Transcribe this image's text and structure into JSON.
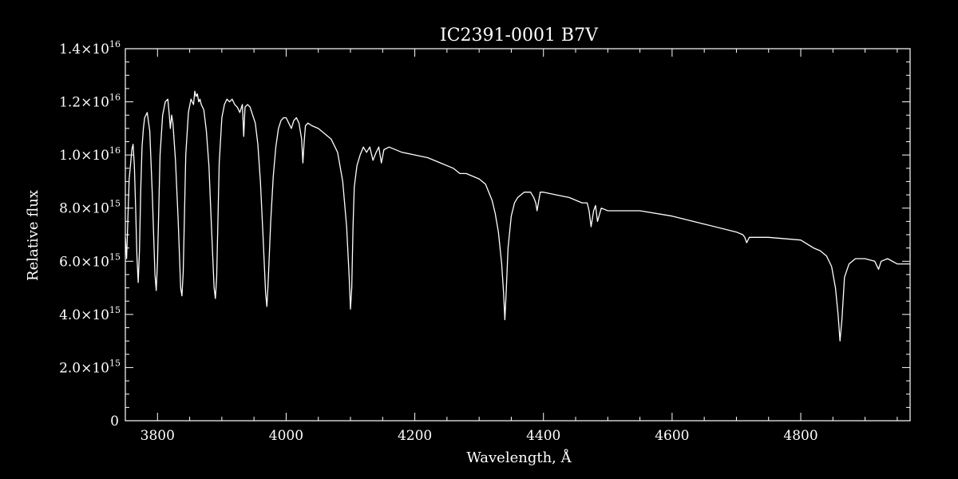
{
  "chart_data": {
    "type": "line",
    "title": "IC2391-0001   B7V",
    "xlabel": "Wavelength, Å",
    "ylabel": "Relative flux",
    "xlim": [
      3750,
      4970
    ],
    "ylim": [
      0,
      1.4e+16
    ],
    "x_ticks": [
      3800,
      4000,
      4200,
      4400,
      4600,
      4800
    ],
    "x_tick_labels": [
      "3800",
      "4000",
      "4200",
      "4400",
      "4600",
      "4800"
    ],
    "y_ticks": [
      {
        "value": 0,
        "mant": "0",
        "exp": ""
      },
      {
        "value": 2000000000000000.0,
        "mant": "2.0×10",
        "exp": "15"
      },
      {
        "value": 4000000000000000.0,
        "mant": "4.0×10",
        "exp": "15"
      },
      {
        "value": 6000000000000000.0,
        "mant": "6.0×10",
        "exp": "15"
      },
      {
        "value": 8000000000000000.0,
        "mant": "8.0×10",
        "exp": "15"
      },
      {
        "value": 1e+16,
        "mant": "1.0×10",
        "exp": "16"
      },
      {
        "value": 1.2e+16,
        "mant": "1.2×10",
        "exp": "16"
      },
      {
        "value": 1.4e+16,
        "mant": "1.4×10",
        "exp": "16"
      }
    ],
    "line_color": "#ffffff",
    "background": "#000000",
    "grid": false,
    "series": [
      {
        "x": [
          3750,
          3752,
          3754,
          3756,
          3758,
          3760,
          3762,
          3764,
          3766,
          3768,
          3770,
          3772,
          3774,
          3776,
          3778,
          3780,
          3784,
          3788,
          3792,
          3796,
          3798,
          3800,
          3804,
          3808,
          3812,
          3816,
          3818,
          3820,
          3822,
          3824,
          3828,
          3832,
          3836,
          3838,
          3840,
          3844,
          3848,
          3852,
          3856,
          3858,
          3860,
          3862,
          3864,
          3866,
          3868,
          3872,
          3876,
          3880,
          3884,
          3888,
          3890,
          3892,
          3896,
          3900,
          3904,
          3908,
          3912,
          3916,
          3920,
          3924,
          3928,
          3932,
          3934,
          3936,
          3940,
          3944,
          3948,
          3952,
          3956,
          3960,
          3964,
          3968,
          3970,
          3972,
          3976,
          3980,
          3984,
          3988,
          3992,
          3996,
          4000,
          4004,
          4008,
          4012,
          4016,
          4020,
          4024,
          4026,
          4028,
          4030,
          4034,
          4040,
          4050,
          4060,
          4070,
          4080,
          4088,
          4094,
          4098,
          4100,
          4102,
          4104,
          4106,
          4110,
          4115,
          4120,
          4125,
          4130,
          4135,
          4140,
          4144,
          4148,
          4152,
          4160,
          4180,
          4200,
          4220,
          4240,
          4260,
          4270,
          4280,
          4300,
          4310,
          4320,
          4325,
          4330,
          4335,
          4338,
          4340,
          4342,
          4345,
          4350,
          4355,
          4360,
          4370,
          4380,
          4385,
          4388,
          4390,
          4395,
          4400,
          4420,
          4440,
          4460,
          4468,
          4471,
          4474,
          4478,
          4481,
          4484,
          4490,
          4500,
          4550,
          4600,
          4650,
          4700,
          4710,
          4713,
          4716,
          4720,
          4750,
          4800,
          4820,
          4830,
          4840,
          4848,
          4854,
          4858,
          4861,
          4864,
          4868,
          4875,
          4885,
          4900,
          4915,
          4921,
          4925,
          4935,
          4950,
          4970
        ],
        "y": [
          6900000000000000.0,
          6100000000000000.0,
          7600000000000000.0,
          9100000000000000.0,
          9600000000000000.0,
          1.02e+16,
          1.04e+16,
          9600000000000000.0,
          8000000000000000.0,
          6200000000000000.0,
          5200000000000000.0,
          6400000000000000.0,
          8700000000000000.0,
          1.03e+16,
          1.1e+16,
          1.14e+16,
          1.16e+16,
          1.09e+16,
          8500000000000000.0,
          5500000000000000.0,
          4900000000000000.0,
          6000000000000000.0,
          1e+16,
          1.15e+16,
          1.2e+16,
          1.21e+16,
          1.16e+16,
          1.1e+16,
          1.15e+16,
          1.12e+16,
          9800000000000000.0,
          7600000000000000.0,
          5000000000000000.0,
          4700000000000000.0,
          5600000000000000.0,
          1e+16,
          1.16e+16,
          1.21e+16,
          1.19e+16,
          1.24e+16,
          1.22e+16,
          1.23e+16,
          1.2e+16,
          1.21e+16,
          1.19e+16,
          1.17e+16,
          1.09e+16,
          9600000000000000.0,
          7200000000000000.0,
          5000000000000000.0,
          4600000000000000.0,
          5400000000000000.0,
          9700000000000000.0,
          1.14e+16,
          1.19e+16,
          1.21e+16,
          1.2e+16,
          1.21e+16,
          1.19e+16,
          1.18e+16,
          1.16e+16,
          1.19e+16,
          1.07e+16,
          1.18e+16,
          1.19e+16,
          1.18e+16,
          1.15e+16,
          1.12e+16,
          1.04e+16,
          9000000000000000.0,
          7000000000000000.0,
          4800000000000000.0,
          4300000000000000.0,
          5200000000000000.0,
          7500000000000000.0,
          9200000000000000.0,
          1.03e+16,
          1.1e+16,
          1.13e+16,
          1.14e+16,
          1.14e+16,
          1.12e+16,
          1.1e+16,
          1.13e+16,
          1.14e+16,
          1.12e+16,
          1.06e+16,
          9700000000000000.0,
          1.05e+16,
          1.11e+16,
          1.12e+16,
          1.11e+16,
          1.1e+16,
          1.08e+16,
          1.06e+16,
          1.01e+16,
          9000000000000000.0,
          7300000000000000.0,
          5400000000000000.0,
          4200000000000000.0,
          5000000000000000.0,
          7300000000000000.0,
          8800000000000000.0,
          9600000000000000.0,
          1e+16,
          1.03e+16,
          1.01e+16,
          1.03e+16,
          9800000000000000.0,
          1.01e+16,
          1.03e+16,
          9700000000000000.0,
          1.02e+16,
          1.03e+16,
          1.01e+16,
          1e+16,
          9900000000000000.0,
          9700000000000000.0,
          9500000000000000.0,
          9300000000000000.0,
          9300000000000000.0,
          9100000000000000.0,
          8900000000000000.0,
          8300000000000000.0,
          7800000000000000.0,
          7100000000000000.0,
          5900000000000000.0,
          4800000000000000.0,
          3800000000000000.0,
          4800000000000000.0,
          6500000000000000.0,
          7700000000000000.0,
          8200000000000000.0,
          8400000000000000.0,
          8600000000000000.0,
          8600000000000000.0,
          8400000000000000.0,
          8200000000000000.0,
          7900000000000000.0,
          8600000000000000.0,
          8600000000000000.0,
          8500000000000000.0,
          8400000000000000.0,
          8200000000000000.0,
          8200000000000000.0,
          7900000000000000.0,
          7300000000000000.0,
          7900000000000000.0,
          8100000000000000.0,
          7500000000000000.0,
          8000000000000000.0,
          7900000000000000.0,
          7900000000000000.0,
          7700000000000000.0,
          7400000000000000.0,
          7100000000000000.0,
          7000000000000000.0,
          6900000000000000.0,
          6700000000000000.0,
          6900000000000000.0,
          6900000000000000.0,
          6800000000000000.0,
          6500000000000000.0,
          6400000000000000.0,
          6200000000000000.0,
          5800000000000000.0,
          5000000000000000.0,
          4000000000000000.0,
          3000000000000000.0,
          3800000000000000.0,
          5400000000000000.0,
          5900000000000000.0,
          6100000000000000.0,
          6100000000000000.0,
          6000000000000000.0,
          5700000000000000.0,
          6000000000000000.0,
          6100000000000000.0,
          5900000000000000.0,
          5900000000000000.0
        ]
      }
    ]
  }
}
